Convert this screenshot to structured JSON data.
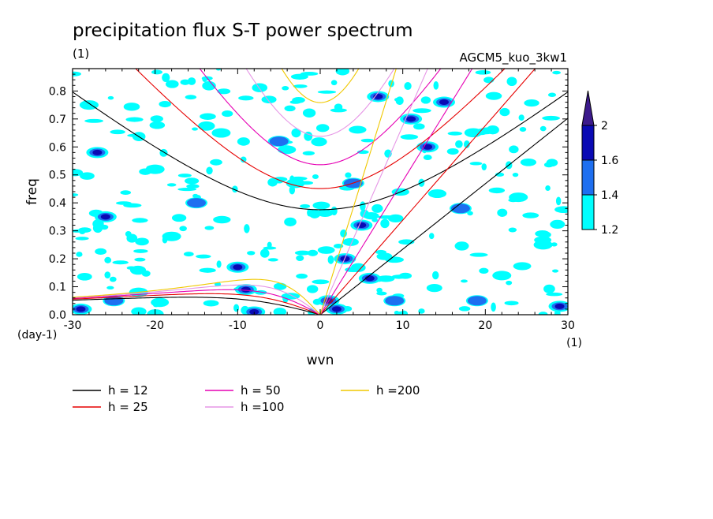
{
  "chart_data": {
    "type": "heatmap",
    "title": "precipitation flux S-T power spectrum",
    "subtitle_left": "(1)",
    "subtitle_right": "AGCM5_kuo_3kw1",
    "xlabel": "wvn",
    "ylabel": "freq",
    "x_unit": "(1)",
    "y_unit": "(day-1)",
    "xlim": [
      -30,
      30
    ],
    "ylim": [
      0,
      0.88
    ],
    "x_ticks": [
      -30,
      -20,
      -10,
      0,
      10,
      20,
      30
    ],
    "y_ticks": [
      0.0,
      0.1,
      0.2,
      0.3,
      0.4,
      0.5,
      0.6,
      0.7,
      0.8
    ],
    "x_tick_labels": [
      "-30",
      "-20",
      "-10",
      "0",
      "10",
      "20",
      "30"
    ],
    "y_tick_labels": [
      "0.0",
      "0.1",
      "0.2",
      "0.3",
      "0.4",
      "0.5",
      "0.6",
      "0.7",
      "0.8"
    ],
    "colorbar": {
      "levels": [
        1.2,
        1.4,
        1.6,
        2
      ],
      "labels": [
        "1.2",
        "1.4",
        "1.6",
        "2"
      ],
      "colors": [
        "#00ffff",
        "#1e6ff0",
        "#0a0ab4",
        "#3c1a8c"
      ]
    },
    "dispersion_curves": [
      {
        "label": "h = 12",
        "h": 12,
        "color": "#000000"
      },
      {
        "label": "h = 25",
        "h": 25,
        "color": "#e60000"
      },
      {
        "label": "h = 50",
        "h": 50,
        "color": "#e600b4"
      },
      {
        "label": "h =100",
        "h": 100,
        "color": "#e696e6"
      },
      {
        "label": "h =200",
        "h": 200,
        "color": "#f0c800"
      }
    ],
    "significant_regions": [
      {
        "wvn": -29,
        "freq": 0.02,
        "level": 1.6
      },
      {
        "wvn": -28,
        "freq": 0.75,
        "level": 1.2
      },
      {
        "wvn": -27,
        "freq": 0.58,
        "level": 1.6
      },
      {
        "wvn": -26,
        "freq": 0.35,
        "level": 1.6
      },
      {
        "wvn": -25,
        "freq": 0.05,
        "level": 1.4
      },
      {
        "wvn": -22,
        "freq": 0.08,
        "level": 1.2
      },
      {
        "wvn": -20,
        "freq": 0.52,
        "level": 1.2
      },
      {
        "wvn": -18,
        "freq": 0.28,
        "level": 1.2
      },
      {
        "wvn": -15,
        "freq": 0.4,
        "level": 1.4
      },
      {
        "wvn": -12,
        "freq": 0.65,
        "level": 1.2
      },
      {
        "wvn": -10,
        "freq": 0.17,
        "level": 1.6
      },
      {
        "wvn": -9,
        "freq": 0.09,
        "level": 1.6
      },
      {
        "wvn": -8,
        "freq": 0.01,
        "level": 1.6
      },
      {
        "wvn": -5,
        "freq": 0.62,
        "level": 1.4
      },
      {
        "wvn": -3,
        "freq": 0.47,
        "level": 1.2
      },
      {
        "wvn": 1,
        "freq": 0.05,
        "level": 2
      },
      {
        "wvn": 2,
        "freq": 0.02,
        "level": 1.6
      },
      {
        "wvn": 3,
        "freq": 0.2,
        "level": 1.6
      },
      {
        "wvn": 4,
        "freq": 0.47,
        "level": 1.4
      },
      {
        "wvn": 5,
        "freq": 0.32,
        "level": 1.6
      },
      {
        "wvn": 6,
        "freq": 0.13,
        "level": 1.6
      },
      {
        "wvn": 7,
        "freq": 0.78,
        "level": 1.6
      },
      {
        "wvn": 9,
        "freq": 0.05,
        "level": 1.4
      },
      {
        "wvn": 11,
        "freq": 0.7,
        "level": 1.6
      },
      {
        "wvn": 13,
        "freq": 0.6,
        "level": 1.6
      },
      {
        "wvn": 15,
        "freq": 0.76,
        "level": 1.6
      },
      {
        "wvn": 17,
        "freq": 0.38,
        "level": 1.4
      },
      {
        "wvn": 19,
        "freq": 0.05,
        "level": 1.4
      },
      {
        "wvn": 22,
        "freq": 0.14,
        "level": 1.2
      },
      {
        "wvn": 24,
        "freq": 0.42,
        "level": 1.2
      },
      {
        "wvn": 27,
        "freq": 0.25,
        "level": 1.2
      },
      {
        "wvn": 29,
        "freq": 0.03,
        "level": 1.6
      }
    ]
  }
}
